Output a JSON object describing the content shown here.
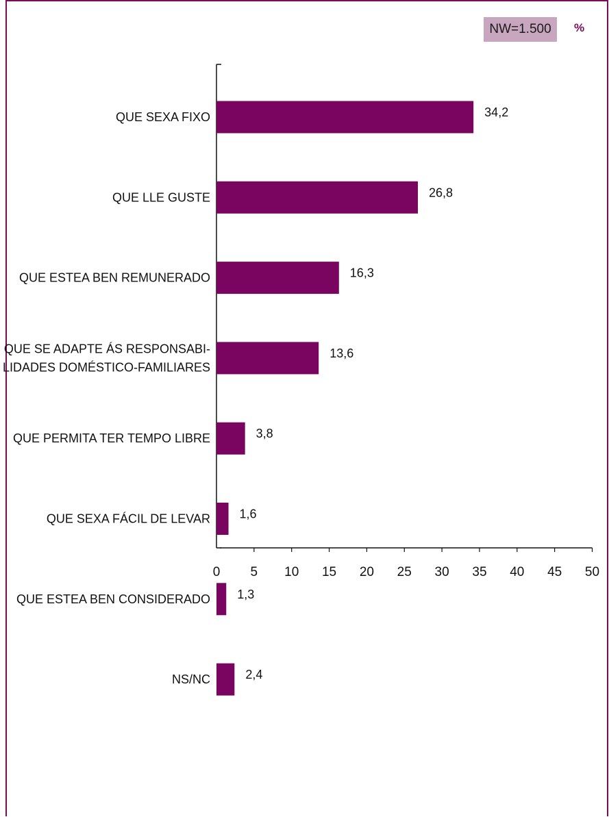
{
  "header": {
    "sample_label": "NW=1.500",
    "unit_label": "%"
  },
  "colors": {
    "bar": "#7a0561",
    "frame": "#7a0a5a",
    "badge": "#c8a6c0"
  },
  "chart_data": {
    "type": "bar",
    "orientation": "horizontal",
    "categories": [
      [
        "QUE SEXA FIXO"
      ],
      [
        "QUE LLE GUSTE"
      ],
      [
        "QUE ESTEA BEN REMUNERADO"
      ],
      [
        "QUE SE ADAPTE ÁS RESPONSABI-",
        "LIDADES DOMÉSTICO-FAMILIARES"
      ],
      [
        "QUE PERMITA TER TEMPO LIBRE"
      ],
      [
        "QUE SEXA FÁCIL DE LEVAR"
      ],
      [
        "QUE ESTEA BEN CONSIDERADO"
      ],
      [
        "NS/NC"
      ]
    ],
    "values": [
      34.2,
      26.8,
      16.3,
      13.6,
      3.8,
      1.6,
      1.3,
      2.4
    ],
    "value_labels": [
      "34,2",
      "26,8",
      "16,3",
      "13,6",
      "3,8",
      "1,6",
      "1,3",
      "2,4"
    ],
    "xlim": [
      0,
      50
    ],
    "xticks": [
      0,
      5,
      10,
      15,
      20,
      25,
      30,
      35,
      40,
      45,
      50
    ],
    "xtick_labels": [
      "0",
      "5",
      "10",
      "15",
      "20",
      "25",
      "30",
      "35",
      "40",
      "45",
      "50"
    ],
    "grid": false,
    "legend": "none"
  }
}
